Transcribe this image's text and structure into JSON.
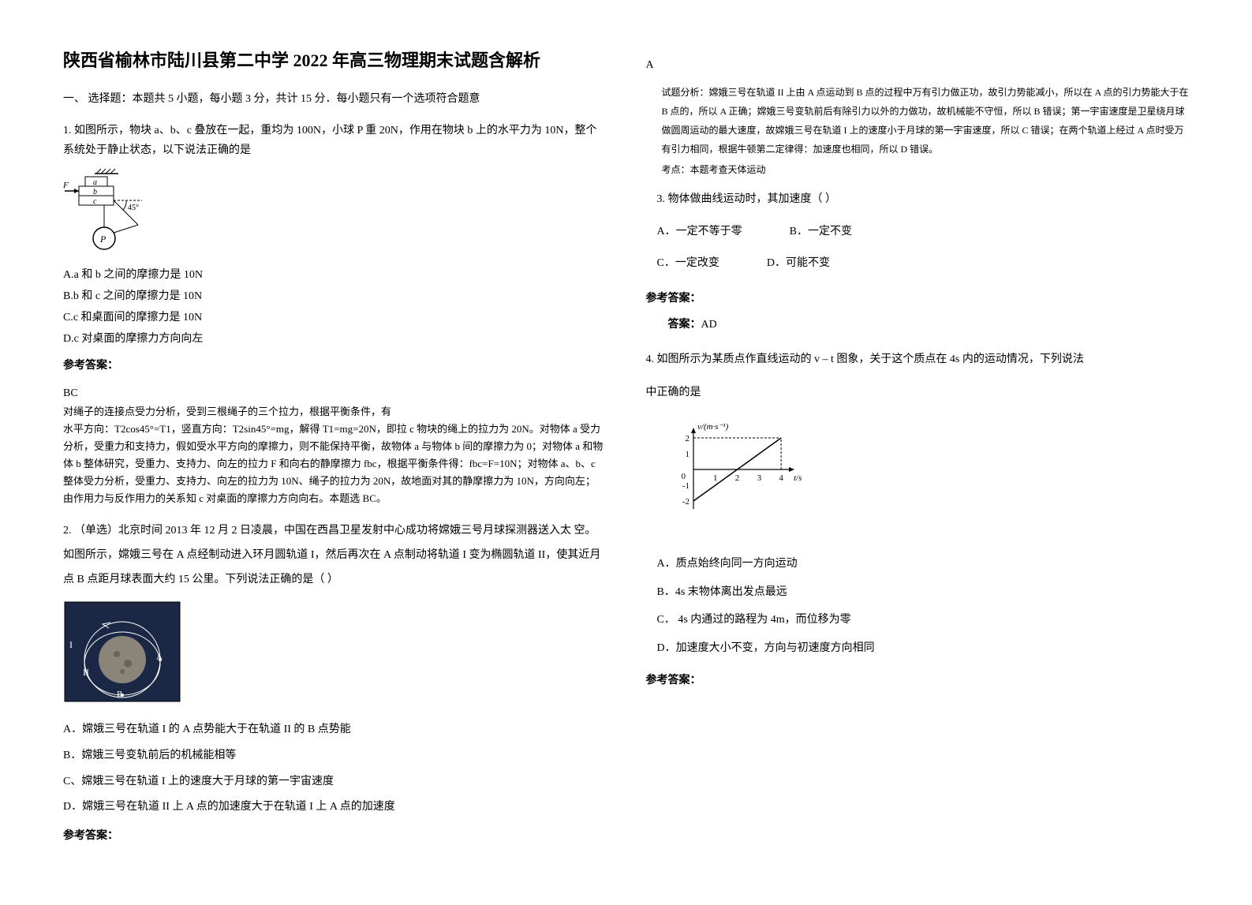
{
  "title": "陕西省榆林市陆川县第二中学 2022 年高三物理期末试题含解析",
  "section1": {
    "heading": "一、 选择题：本题共 5 小题，每小题 3 分，共计 15 分．每小题只有一个选项符合题意"
  },
  "q1": {
    "text": "1. 如图所示，物块 a、b、c 叠放在一起，重均为 100N，小球 P 重 20N，作用在物块 b 上的水平力为 10N，整个系统处于静止状态，以下说法正确的是",
    "optA": "A.a 和 b 之间的摩擦力是 10N",
    "optB": "B.b 和 c 之间的摩擦力是 10N",
    "optC": "C.c 和桌面间的摩擦力是 10N",
    "optD": "D.c 对桌面的摩擦力方向向左",
    "answerLabel": "参考答案：",
    "answer": "BC",
    "explanation": "对绳子的连接点受力分析，受到三根绳子的三个拉力，根据平衡条件，有\n水平方向：T2cos45°=T1，竖直方向：T2sin45°=mg，解得 T1=mg=20N，即拉 c 物块的绳上的拉力为 20N。对物体 a 受力分析，受重力和支持力，假如受水平方向的摩擦力，则不能保持平衡，故物体 a 与物体 b 间的摩擦力为 0；对物体 a 和物体 b 整体研究，受重力、支持力、向左的拉力 F 和向右的静摩擦力 fbc，根据平衡条件得：fbc=F=10N；对物体 a、b、c 整体受力分析，受重力、支持力、向左的拉力为 10N、绳子的拉力为 20N，故地面对其的静摩擦力为 10N，方向向左； 由作用力与反作用力的关系知 c 对桌面的摩擦力方向向右。本题选 BC。"
  },
  "q2": {
    "text": "2. （单选）北京时间 2013 年 12 月 2 日凌晨，中国在西昌卫星发射中心成功将嫦娥三号月球探测器送入太          空。如图所示，嫦娥三号在 A 点经制动进入环月圆轨道 I，然后再次在 A 点制动将轨道 I 变为椭圆轨道 II，使其近月点 B 点距月球表面大约 15 公里。下列说法正确的是（    ）",
    "optA": "A．嫦娥三号在轨道 I 的 A 点势能大于在轨道 II 的 B 点势能",
    "optB": "B．嫦娥三号变轨前后的机械能相等",
    "optC": "C、嫦娥三号在轨道 I 上的速度大于月球的第一宇宙速度",
    "optD": "D．嫦娥三号在轨道 II 上 A 点的加速度大于在轨道 I 上 A 点的加速度",
    "answerLabel": "参考答案："
  },
  "col2": {
    "ansA": "A",
    "analysis": "试题分析：嫦娥三号在轨道 II 上由 A 点运动到 B 点的过程中万有引力做正功，故引力势能减小，所以在 A 点的引力势能大于在 B 点的，所以 A 正确；嫦娥三号变轨前后有除引力以外的力做功，故机械能不守恒，所以 B 错误；第一宇宙速度是卫星绕月球做圆周运动的最大速度，故嫦娥三号在轨道 I 上的速度小于月球的第一宇宙速度，所以 C 错误；在两个轨道上经过 A 点时受万有引力相同，根据牛顿第二定律得：加速度也相同，所以 D 错误。",
    "testPoint": "考点：本题考查天体运动"
  },
  "q3": {
    "text": "3. 物体做曲线运动时，其加速度（   ）",
    "optA": "A．一定不等于零",
    "optB": "B．一定不变",
    "optC": "C．一定改变",
    "optD": "D．可能不变",
    "answerLabel": "参考答案：",
    "answerPrefix": "答案：",
    "answer": "AD"
  },
  "q4": {
    "text": "4. 如图所示为某质点作直线运动的 v  –  t 图象，关于这个质点在 4s 内的运动情况，下列说法",
    "text2": "中正确的是",
    "chart": {
      "ylabel": "v/(m·s⁻¹)",
      "xlabel": "t/s",
      "xticks": [
        "1",
        "2",
        "3",
        "4"
      ],
      "yticks": [
        "-2",
        "-1",
        "0",
        "1",
        "2"
      ],
      "xlim": [
        0,
        4.5
      ],
      "ylim": [
        -2.5,
        2.5
      ],
      "line_start": [
        0,
        -2
      ],
      "line_end": [
        4,
        2
      ],
      "line_color": "#000000",
      "axis_color": "#000000",
      "dash_color": "#000000",
      "width": 180,
      "height": 130
    },
    "optA": "A．质点始终向同一方向运动",
    "optB": "B．4s 末物体离出发点最远",
    "optC": "C．  4s 内通过的路程为 4m，而位移为零",
    "optD": "D．加速度大小不变，方向与初速度方向相同",
    "answerLabel": "参考答案："
  }
}
